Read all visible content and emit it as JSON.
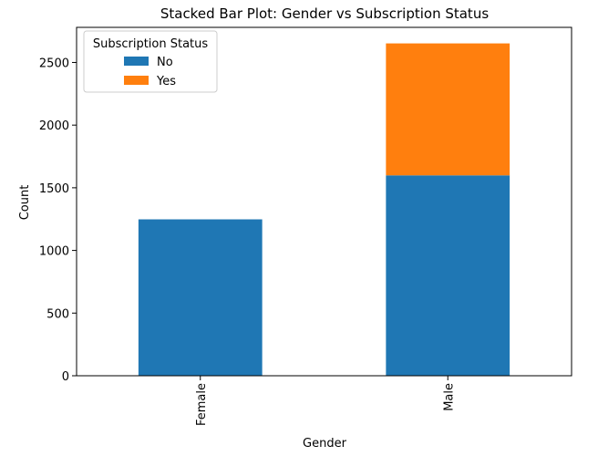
{
  "chart_data": {
    "type": "bar",
    "stacked": true,
    "title": "Stacked Bar Plot: Gender vs Subscription Status",
    "xlabel": "Gender",
    "ylabel": "Count",
    "categories": [
      "Female",
      "Male"
    ],
    "series": [
      {
        "name": "No",
        "color": "#1f77b4",
        "values": [
          1248,
          1599
        ]
      },
      {
        "name": "Yes",
        "color": "#ff7f0e",
        "values": [
          0,
          1053
        ]
      }
    ],
    "ylim": [
      0,
      2780
    ],
    "yticks": [
      0,
      500,
      1000,
      1500,
      2000,
      2500
    ],
    "legend": {
      "title": "Subscription Status",
      "placement": "top-left"
    },
    "grid": false
  }
}
